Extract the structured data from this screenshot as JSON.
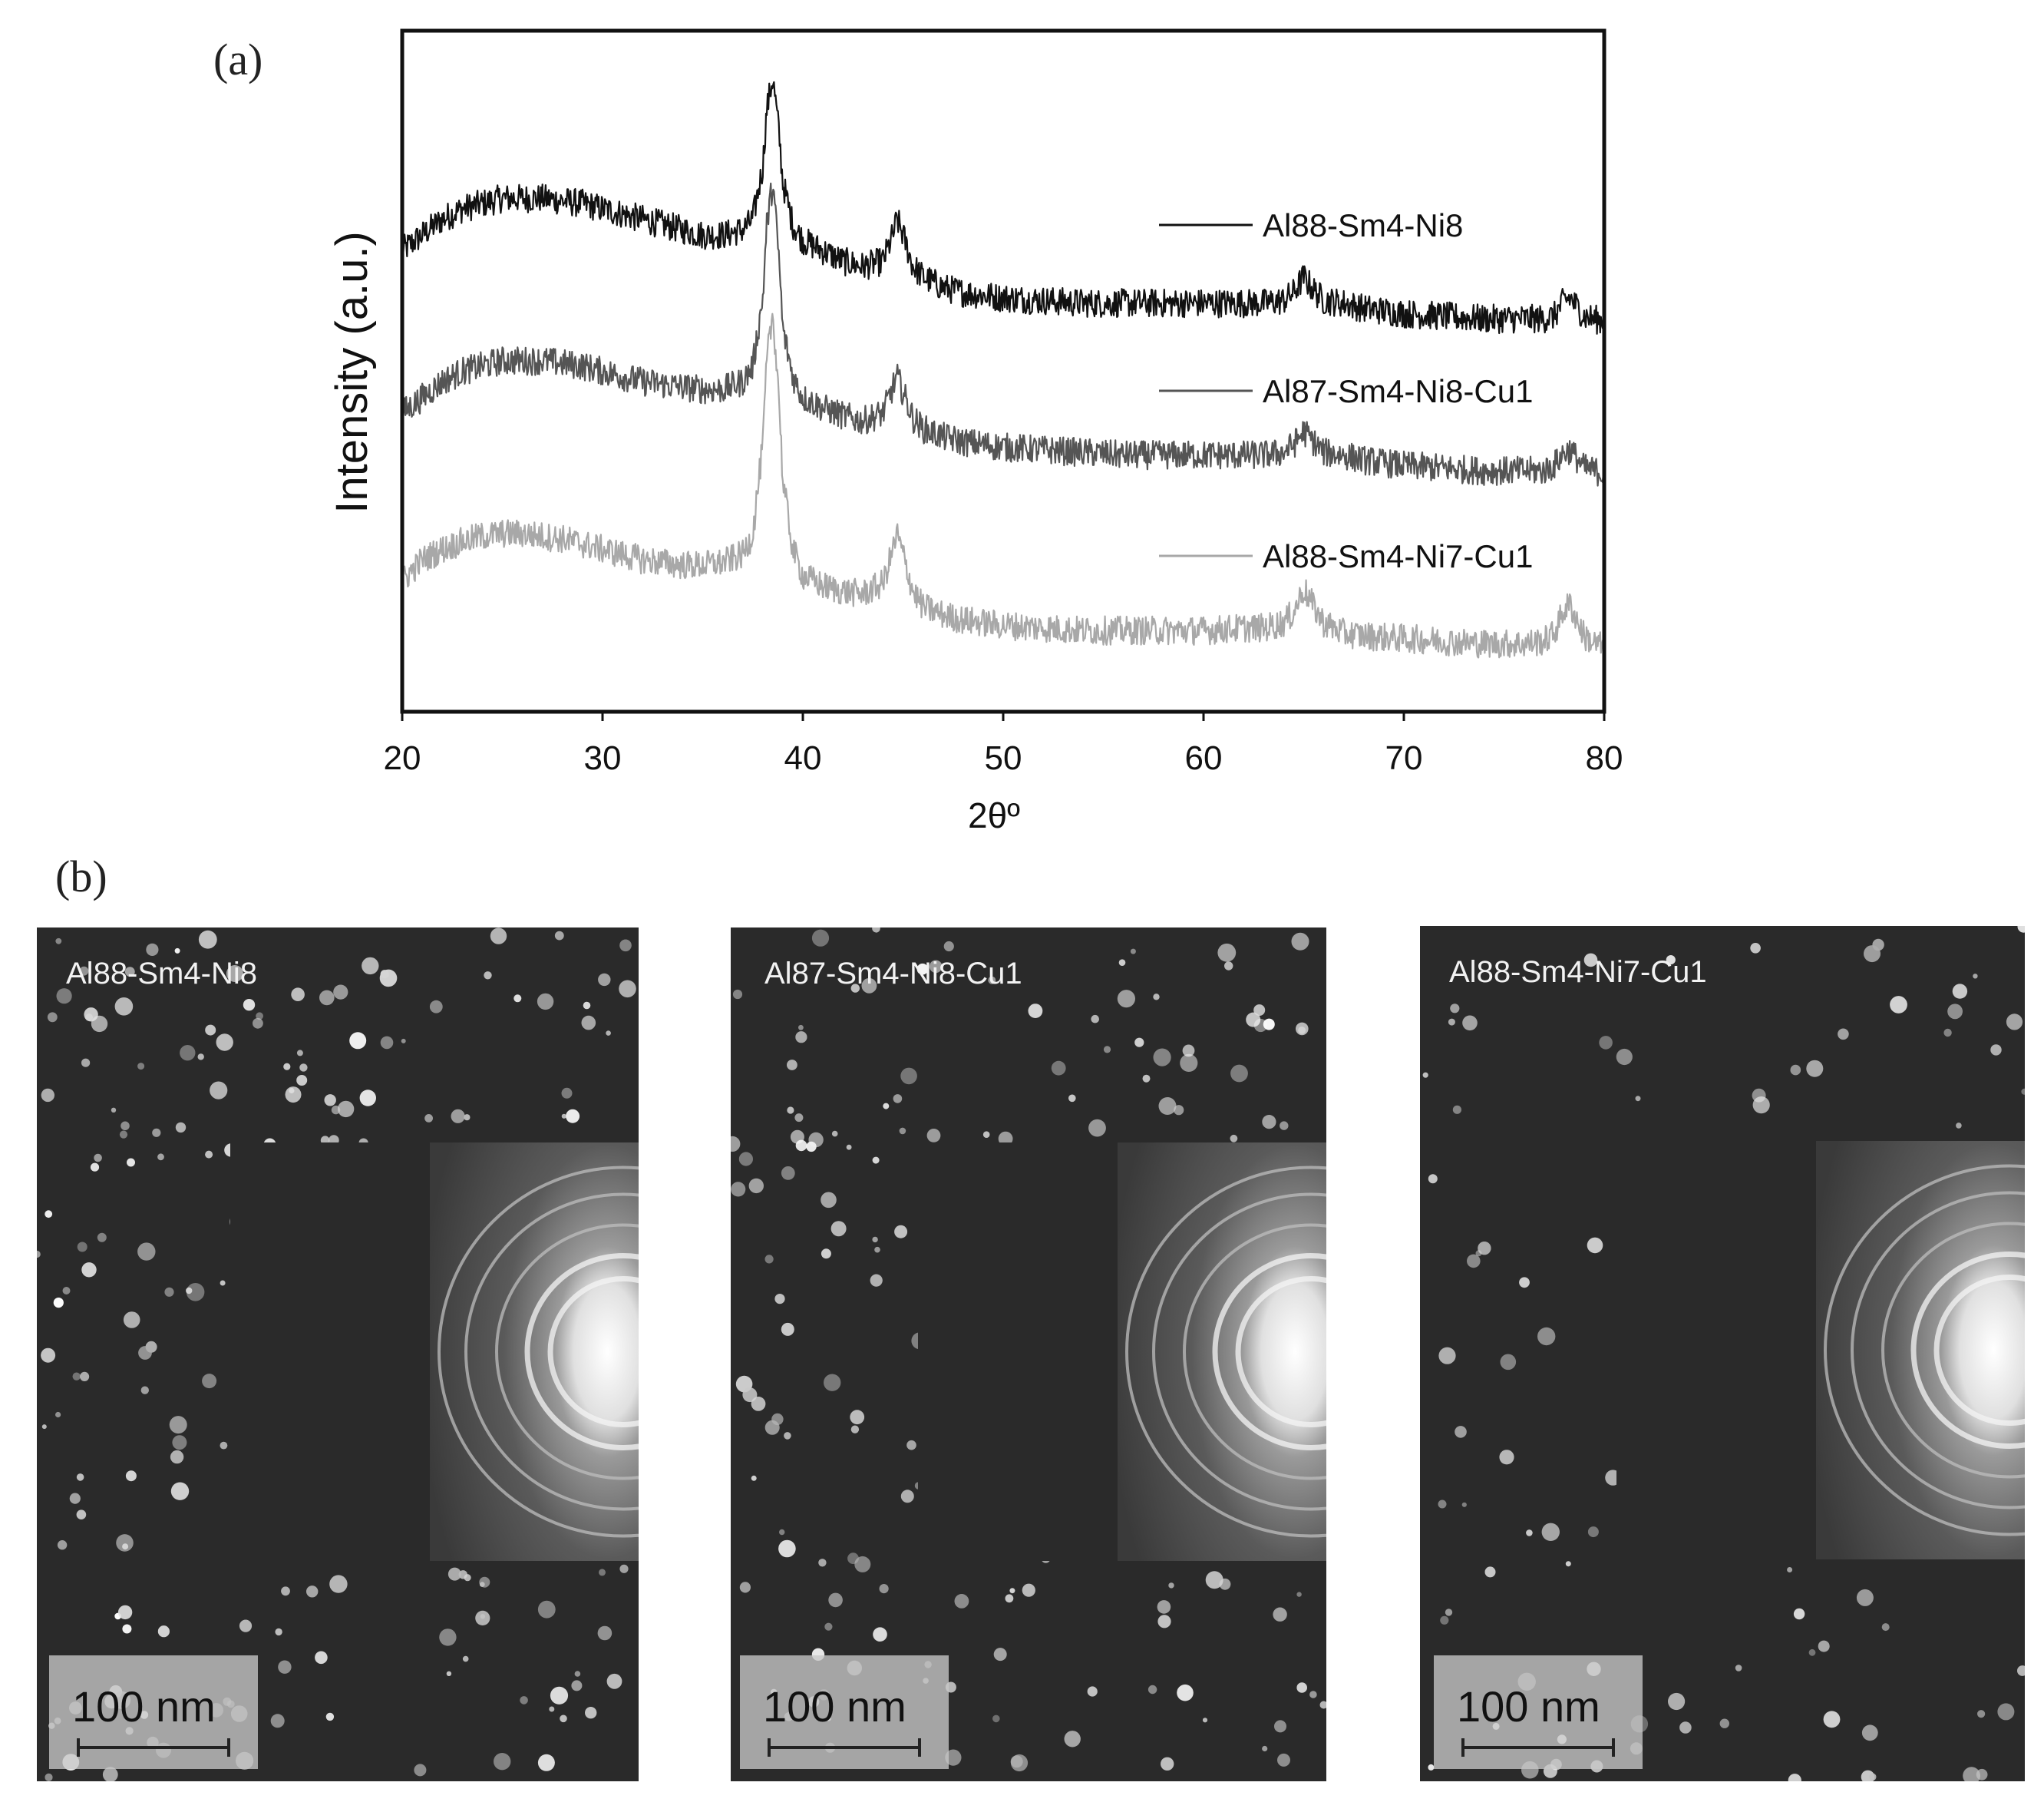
{
  "panels": {
    "a_label": "(a)",
    "b_label": "(b)"
  },
  "chart_data": {
    "type": "line",
    "xlabel": "2θº",
    "ylabel": "Intensity (a.u.)",
    "xlim": [
      20,
      80
    ],
    "xticks": [
      20,
      30,
      40,
      50,
      60,
      70,
      80
    ],
    "yticks": [],
    "grid": false,
    "legend_position": "right",
    "series": [
      {
        "name": "Al88-Sm4-Ni8",
        "color": "#111111",
        "x": [
          20,
          21,
          22,
          23,
          24,
          25,
          26,
          27,
          28,
          29,
          30,
          31,
          32,
          33,
          34,
          35,
          36,
          37,
          37.5,
          38,
          38.2,
          38.5,
          38.8,
          39,
          39.5,
          40,
          41,
          42,
          43,
          44,
          44.5,
          44.7,
          45,
          45.5,
          46,
          47,
          48,
          50,
          52,
          54,
          56,
          58,
          60,
          62,
          63,
          64,
          64.5,
          65,
          65.5,
          66,
          67,
          68,
          70,
          72,
          74,
          76,
          77,
          77.5,
          78,
          78.3,
          78.7,
          79,
          79.5,
          80
        ],
        "y": [
          8.3,
          8.6,
          8.9,
          9.1,
          9.2,
          9.3,
          9.3,
          9.3,
          9.25,
          9.2,
          9.1,
          9.0,
          8.9,
          8.8,
          8.7,
          8.6,
          8.6,
          8.7,
          8.9,
          9.9,
          11.0,
          11.6,
          10.6,
          9.6,
          8.8,
          8.5,
          8.3,
          8.1,
          8.0,
          8.1,
          8.6,
          8.9,
          8.6,
          8.0,
          7.8,
          7.6,
          7.5,
          7.4,
          7.35,
          7.3,
          7.3,
          7.3,
          7.3,
          7.3,
          7.3,
          7.35,
          7.5,
          7.8,
          7.55,
          7.35,
          7.3,
          7.2,
          7.1,
          7.05,
          7.0,
          7.0,
          7.0,
          7.05,
          7.35,
          7.4,
          7.2,
          7.05,
          7.0,
          6.95
        ]
      },
      {
        "name": "Al87-Sm4-Ni8-Cu1",
        "color": "#555555",
        "x": [
          20,
          21,
          22,
          23,
          24,
          25,
          26,
          27,
          28,
          29,
          30,
          31,
          32,
          33,
          34,
          35,
          36,
          37,
          37.5,
          38,
          38.2,
          38.5,
          38.8,
          39,
          39.5,
          40,
          41,
          42,
          43,
          44,
          44.5,
          44.7,
          45,
          45.5,
          46,
          47,
          48,
          50,
          52,
          54,
          56,
          58,
          60,
          62,
          63,
          64,
          64.5,
          65,
          65.5,
          66,
          67,
          68,
          70,
          72,
          74,
          76,
          77,
          77.5,
          78,
          78.3,
          78.7,
          79,
          79.5,
          80
        ],
        "y": [
          5.2,
          5.5,
          5.8,
          6.0,
          6.1,
          6.2,
          6.2,
          6.2,
          6.15,
          6.1,
          6.0,
          5.9,
          5.8,
          5.75,
          5.7,
          5.65,
          5.65,
          5.8,
          6.1,
          7.4,
          8.8,
          9.6,
          8.2,
          6.8,
          5.9,
          5.5,
          5.3,
          5.15,
          5.05,
          5.2,
          5.7,
          5.9,
          5.6,
          5.1,
          4.9,
          4.75,
          4.65,
          4.55,
          4.5,
          4.45,
          4.4,
          4.4,
          4.4,
          4.4,
          4.4,
          4.45,
          4.6,
          4.85,
          4.65,
          4.45,
          4.4,
          4.3,
          4.2,
          4.15,
          4.1,
          4.1,
          4.1,
          4.2,
          4.45,
          4.5,
          4.3,
          4.15,
          4.1,
          4.05
        ]
      },
      {
        "name": "Al88-Sm4-Ni7-Cu1",
        "color": "#a8a8a8",
        "x": [
          20,
          21,
          22,
          23,
          24,
          25,
          26,
          27,
          28,
          29,
          30,
          31,
          32,
          33,
          34,
          35,
          36,
          37,
          37.5,
          38,
          38.2,
          38.5,
          38.8,
          39,
          39.5,
          40,
          41,
          42,
          43,
          44,
          44.5,
          44.7,
          45,
          45.5,
          46,
          47,
          48,
          50,
          52,
          54,
          56,
          58,
          60,
          62,
          63,
          64,
          64.5,
          65,
          65.5,
          66,
          67,
          68,
          70,
          72,
          74,
          76,
          77,
          77.5,
          78,
          78.3,
          78.7,
          79,
          79.5,
          80
        ],
        "y": [
          2.0,
          2.4,
          2.6,
          2.75,
          2.85,
          2.9,
          2.9,
          2.85,
          2.8,
          2.7,
          2.6,
          2.5,
          2.4,
          2.35,
          2.3,
          2.3,
          2.35,
          2.5,
          2.9,
          4.6,
          6.2,
          7.1,
          5.6,
          3.9,
          2.6,
          2.1,
          1.9,
          1.8,
          1.75,
          1.95,
          2.6,
          2.9,
          2.5,
          1.8,
          1.5,
          1.35,
          1.25,
          1.15,
          1.1,
          1.05,
          1.05,
          1.05,
          1.05,
          1.1,
          1.1,
          1.2,
          1.4,
          1.85,
          1.5,
          1.2,
          1.0,
          0.95,
          0.9,
          0.85,
          0.8,
          0.8,
          0.85,
          1.0,
          1.45,
          1.55,
          1.2,
          0.95,
          0.8,
          0.75
        ]
      }
    ],
    "ylim": [
      -0.5,
      12.5
    ]
  },
  "tem_images": [
    {
      "label": "Al88-Sm4-Ni8",
      "scale": "100 nm",
      "particle_density": 1.0
    },
    {
      "label": "Al87-Sm4-Ni8-Cu1",
      "scale": "100 nm",
      "particle_density": 0.75
    },
    {
      "label": "Al88-Sm4-Ni7-Cu1",
      "scale": "100 nm",
      "particle_density": 0.45
    }
  ]
}
